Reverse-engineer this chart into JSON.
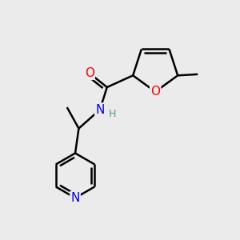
{
  "background_color": "#ebebeb",
  "atom_colors": {
    "C": "#000000",
    "N": "#0000ff",
    "O": "#ff0000",
    "H": "#4a9a8a"
  },
  "bond_color": "#000000",
  "bond_width": 1.8,
  "font_size_atom": 11,
  "font_size_small": 9
}
